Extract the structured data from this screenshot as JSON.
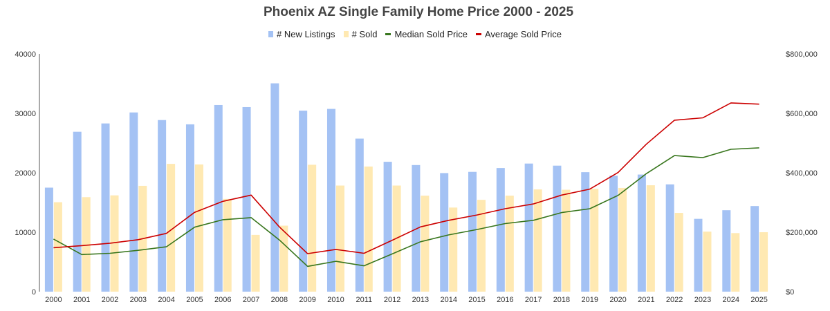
{
  "chart_data": {
    "type": "bar",
    "title": "Phoenix AZ Single Family Home Price 2000 - 2025",
    "xlabel": "",
    "ylabel": "",
    "y2label": "",
    "ylim": [
      0,
      40000
    ],
    "y2lim": [
      0,
      800000
    ],
    "yticks": [
      "0",
      "10000",
      "20000",
      "30000",
      "40000"
    ],
    "y2ticks": [
      "$0",
      "$200,000",
      "$400,000",
      "$600,000",
      "$800,000"
    ],
    "grid": false,
    "legend_position": "top",
    "categories": [
      "2000",
      "2001",
      "2002",
      "2003",
      "2004",
      "2005",
      "2006",
      "2007",
      "2008",
      "2009",
      "2010",
      "2011",
      "2012",
      "2013",
      "2014",
      "2015",
      "2016",
      "2017",
      "2018",
      "2019",
      "2020",
      "2021",
      "2022",
      "2023",
      "2024",
      "2025"
    ],
    "series": [
      {
        "name": "# New Listings",
        "type": "bar",
        "axis": "left",
        "color": "#a4c2f4",
        "values": [
          17500,
          26900,
          28300,
          30150,
          28870,
          28150,
          31400,
          31050,
          35050,
          30450,
          30750,
          25750,
          21850,
          21300,
          19950,
          20150,
          20800,
          21550,
          21200,
          20100,
          19500,
          19700,
          18050,
          12250,
          13700,
          14400
        ]
      },
      {
        "name": "# Sold",
        "type": "bar",
        "axis": "left",
        "color": "#ffe9b2",
        "values": [
          15050,
          15900,
          16200,
          17800,
          21500,
          21400,
          15600,
          9550,
          11100,
          21350,
          17850,
          21050,
          17850,
          16150,
          14150,
          15450,
          16150,
          17200,
          17150,
          17300,
          17450,
          17900,
          13250,
          10100,
          9850,
          10000
        ]
      },
      {
        "name": "Median Sold Price",
        "type": "line",
        "axis": "right",
        "color": "#38761d",
        "values": [
          177000,
          125000,
          129000,
          139000,
          151000,
          217000,
          242000,
          249000,
          174000,
          85000,
          102000,
          87000,
          127000,
          168000,
          191000,
          209000,
          229000,
          240000,
          266000,
          279000,
          324000,
          397000,
          458000,
          451000,
          479000,
          484000
        ]
      },
      {
        "name": "Average Sold Price",
        "type": "line",
        "axis": "right",
        "color": "#cc0000",
        "values": [
          148000,
          155000,
          163000,
          175000,
          196000,
          267000,
          304000,
          325000,
          218000,
          128000,
          142000,
          129000,
          173000,
          218000,
          240000,
          258000,
          279000,
          295000,
          325000,
          345000,
          401000,
          496000,
          577000,
          585000,
          635000,
          631000
        ]
      }
    ]
  },
  "header": {
    "title": "Phoenix AZ Single Family Home Price 2000 - 2025"
  },
  "legend": {
    "items": [
      {
        "label": "# New Listings",
        "kind": "box",
        "color": "#a4c2f4"
      },
      {
        "label": "# Sold",
        "kind": "box",
        "color": "#ffe9b2"
      },
      {
        "label": "Median Sold Price",
        "kind": "line",
        "color": "#38761d"
      },
      {
        "label": "Average Sold Price",
        "kind": "line",
        "color": "#cc0000"
      }
    ]
  },
  "colors": {
    "axis_line": "#555555",
    "tick_text": "#333333",
    "title_text": "#444444"
  }
}
